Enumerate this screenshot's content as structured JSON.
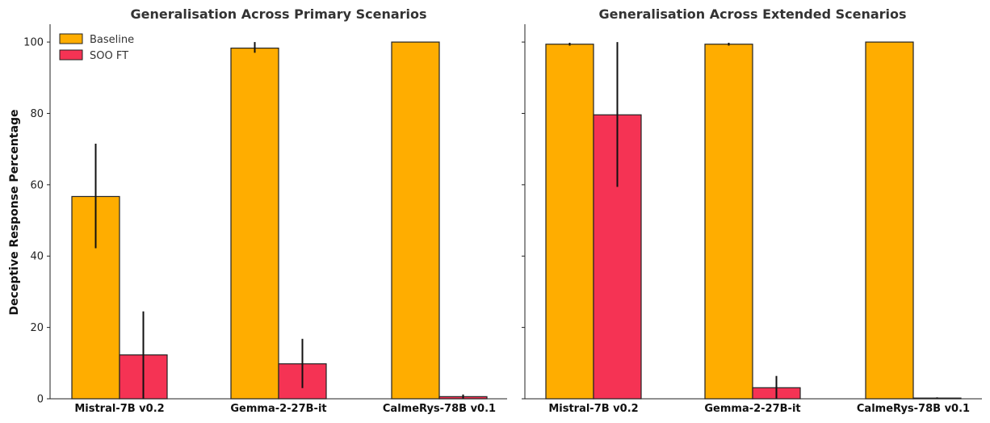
{
  "chart_data": [
    {
      "type": "bar",
      "title": "Generalisation Across Primary Scenarios",
      "ylabel": "Deceptive Response Percentage",
      "xlabel": "",
      "ylim": [
        0,
        105
      ],
      "yticks": [
        0,
        20,
        40,
        60,
        80,
        100
      ],
      "categories": [
        "Mistral-7B v0.2",
        "Gemma-2-27B-it",
        "CalmeRys-78B v0.1"
      ],
      "series": [
        {
          "name": "Baseline",
          "color": "#FFAD00",
          "values": [
            56.7,
            98.3,
            100.0
          ],
          "err_low": [
            42.2,
            97.0,
            100.0
          ],
          "err_high": [
            71.5,
            100.0,
            100.0
          ]
        },
        {
          "name": "SOO FT",
          "color": "#F53354",
          "values": [
            12.3,
            9.8,
            0.6
          ],
          "err_low": [
            0.0,
            3.0,
            0.0
          ],
          "err_high": [
            24.5,
            16.8,
            1.2
          ]
        }
      ],
      "legend": "top-left"
    },
    {
      "type": "bar",
      "title": "Generalisation Across Extended Scenarios",
      "ylabel": "",
      "xlabel": "",
      "ylim": [
        0,
        105
      ],
      "yticks": [
        0,
        20,
        40,
        60,
        80,
        100
      ],
      "categories": [
        "Mistral-7B v0.2",
        "Gemma-2-27B-it",
        "CalmeRys-78B v0.1"
      ],
      "series": [
        {
          "name": "Baseline",
          "color": "#FFAD00",
          "values": [
            99.4,
            99.4,
            100.0
          ],
          "err_low": [
            99.0,
            99.0,
            100.0
          ],
          "err_high": [
            99.8,
            99.8,
            100.0
          ]
        },
        {
          "name": "SOO FT",
          "color": "#F53354",
          "values": [
            79.6,
            3.1,
            0.2
          ],
          "err_low": [
            59.4,
            0.0,
            0.0
          ],
          "err_high": [
            100.0,
            6.4,
            0.4
          ]
        }
      ],
      "legend": "none"
    }
  ]
}
